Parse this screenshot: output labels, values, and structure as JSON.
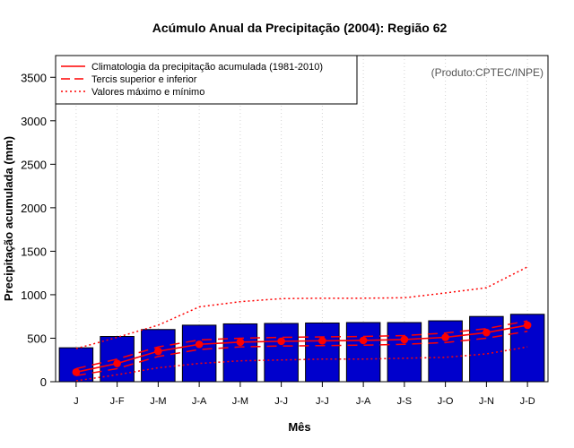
{
  "chart_data": {
    "type": "bar",
    "title": "Acúmulo Anual da Precipitação (2004): Região 62",
    "xlabel": "Mês",
    "ylabel": "Precipitação acumulada (mm)",
    "credit": "(Produto:CPTEC/INPE)",
    "ylim": [
      0,
      3750
    ],
    "yticks": [
      0,
      500,
      1000,
      1500,
      2000,
      2500,
      3000,
      3500
    ],
    "categories": [
      "J",
      "J-F",
      "J-M",
      "J-A",
      "J-M",
      "J-J",
      "J-J",
      "J-A",
      "J-S",
      "J-O",
      "J-N",
      "J-D"
    ],
    "values": [
      390,
      520,
      600,
      650,
      665,
      670,
      675,
      680,
      680,
      700,
      750,
      775
    ],
    "bar_color": "#0000cc",
    "line_color": "#ff0000",
    "series": [
      {
        "name": "Climatologia da precipitação acumulada (1981-2010)",
        "style": "solid-points",
        "values": [
          110,
          210,
          350,
          430,
          455,
          465,
          470,
          475,
          485,
          510,
          565,
          650
        ]
      },
      {
        "name": "Tercis superior",
        "style": "dashed",
        "values": [
          150,
          260,
          400,
          480,
          500,
          510,
          515,
          520,
          530,
          560,
          610,
          700
        ]
      },
      {
        "name": "Tercis inferior",
        "style": "dashed",
        "values": [
          70,
          150,
          290,
          370,
          400,
          410,
          415,
          420,
          430,
          450,
          500,
          580
        ]
      },
      {
        "name": "Valores máximo",
        "style": "dotted",
        "values": [
          380,
          510,
          650,
          860,
          920,
          955,
          960,
          960,
          965,
          1020,
          1080,
          1320
        ]
      },
      {
        "name": "Valores mínimo",
        "style": "dotted",
        "values": [
          10,
          80,
          160,
          210,
          240,
          250,
          260,
          260,
          270,
          280,
          320,
          400
        ]
      }
    ],
    "legend": {
      "position": "top-left",
      "entries": [
        {
          "label": "Climatologia da precipitação acumulada (1981-2010)",
          "style": "solid"
        },
        {
          "label": "Tercis superior e inferior",
          "style": "dashed"
        },
        {
          "label": "Valores máximo e mínimo",
          "style": "dotted"
        }
      ]
    }
  }
}
